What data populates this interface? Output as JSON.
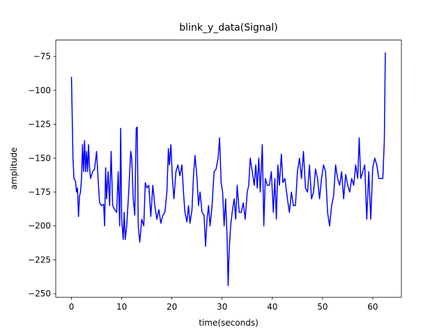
{
  "chart_data": {
    "type": "line",
    "title": "blink_y_data(Signal)",
    "xlabel": "time(seconds)",
    "ylabel": "amplitude",
    "xlim": [
      -3.13,
      65.7
    ],
    "ylim": [
      -252.6,
      -62.9
    ],
    "xticks": [
      0,
      10,
      20,
      30,
      40,
      50,
      60
    ],
    "yticks": [
      {
        "value": -250,
        "label": "−250"
      },
      {
        "value": -225,
        "label": "−225"
      },
      {
        "value": -200,
        "label": "−200"
      },
      {
        "value": -175,
        "label": "−175"
      },
      {
        "value": -150,
        "label": "−150"
      },
      {
        "value": -125,
        "label": "−125"
      },
      {
        "value": -100,
        "label": "−100"
      },
      {
        "value": -75,
        "label": "−75"
      }
    ],
    "grid": false,
    "x": [
      0,
      0.3,
      0.5,
      0.8,
      1.0,
      1.2,
      1.4,
      1.6,
      1.8,
      2.0,
      2.2,
      2.4,
      2.6,
      2.8,
      3.0,
      3.2,
      3.4,
      3.6,
      3.8,
      4.2,
      4.6,
      5.0,
      5.3,
      5.6,
      6.0,
      6.4,
      6.6,
      6.8,
      7.0,
      7.3,
      7.6,
      7.9,
      8.2,
      8.6,
      9.0,
      9.3,
      9.6,
      9.8,
      10.0,
      10.3,
      10.5,
      10.7,
      11.0,
      11.4,
      11.8,
      12.0,
      12.3,
      12.6,
      12.9,
      13.1,
      13.3,
      13.6,
      14.0,
      14.4,
      14.7,
      15.0,
      15.4,
      15.8,
      16.2,
      16.6,
      17.0,
      17.4,
      17.8,
      18.2,
      18.6,
      19.0,
      19.3,
      19.5,
      19.8,
      20.1,
      20.4,
      20.8,
      21.2,
      21.6,
      22.0,
      22.3,
      22.6,
      23.0,
      23.3,
      23.6,
      24.0,
      24.3,
      24.6,
      25.0,
      25.3,
      25.6,
      26.0,
      26.4,
      26.7,
      27.0,
      27.3,
      27.6,
      28.0,
      28.4,
      28.8,
      29.2,
      29.5,
      29.8,
      30.1,
      30.4,
      30.7,
      31.0,
      31.2,
      31.4,
      31.7,
      32.0,
      32.4,
      32.7,
      33.0,
      33.4,
      33.8,
      34.2,
      34.6,
      35.0,
      35.3,
      35.6,
      36.0,
      36.4,
      36.7,
      37.0,
      37.3,
      37.6,
      38.0,
      38.3,
      38.6,
      39.0,
      39.4,
      39.8,
      40.2,
      40.5,
      40.8,
      41.1,
      41.4,
      41.8,
      42.1,
      42.5,
      43.0,
      43.4,
      43.8,
      44.2,
      44.6,
      45.0,
      45.4,
      45.8,
      46.2,
      46.6,
      47.0,
      47.4,
      47.8,
      48.2,
      48.6,
      49.0,
      49.4,
      49.8,
      50.2,
      50.6,
      51.0,
      51.4,
      51.8,
      52.2,
      52.6,
      53.0,
      53.4,
      53.8,
      54.2,
      54.6,
      55.0,
      55.4,
      55.8,
      56.2,
      56.6,
      57.0,
      57.3,
      57.6,
      58.0,
      58.4,
      58.8,
      59.2,
      59.6,
      60.0,
      60.4,
      60.8,
      61.2,
      61.6,
      62.0,
      62.3,
      62.5
    ],
    "series": [
      {
        "color": "#0000ff",
        "values": [
          -90,
          -150,
          -165,
          -167,
          -175,
          -172,
          -193,
          -178,
          -175,
          -165,
          -140,
          -160,
          -137,
          -160,
          -145,
          -160,
          -140,
          -157,
          -165,
          -160,
          -158,
          -145,
          -165,
          -183,
          -185,
          -184,
          -200,
          -157,
          -180,
          -160,
          -185,
          -145,
          -185,
          -188,
          -190,
          -160,
          -200,
          -128,
          -195,
          -210,
          -190,
          -210,
          -200,
          -175,
          -145,
          -150,
          -180,
          -192,
          -128,
          -127,
          -200,
          -212,
          -195,
          -200,
          -168,
          -172,
          -170,
          -193,
          -170,
          -185,
          -195,
          -188,
          -198,
          -192,
          -190,
          -175,
          -143,
          -155,
          -140,
          -165,
          -180,
          -160,
          -155,
          -163,
          -155,
          -175,
          -190,
          -197,
          -185,
          -198,
          -188,
          -163,
          -148,
          -165,
          -185,
          -175,
          -190,
          -192,
          -215,
          -195,
          -185,
          -200,
          -185,
          -160,
          -158,
          -150,
          -135,
          -168,
          -175,
          -200,
          -180,
          -210,
          -244,
          -218,
          -200,
          -190,
          -180,
          -195,
          -170,
          -190,
          -190,
          -183,
          -195,
          -175,
          -170,
          -150,
          -160,
          -170,
          -155,
          -172,
          -150,
          -175,
          -140,
          -200,
          -165,
          -170,
          -170,
          -160,
          -190,
          -165,
          -195,
          -155,
          -170,
          -147,
          -168,
          -165,
          -180,
          -190,
          -175,
          -185,
          -185,
          -160,
          -150,
          -165,
          -145,
          -172,
          -175,
          -155,
          -180,
          -175,
          -158,
          -165,
          -180,
          -165,
          -155,
          -160,
          -190,
          -200,
          -185,
          -178,
          -155,
          -165,
          -170,
          -160,
          -180,
          -162,
          -170,
          -175,
          -165,
          -170,
          -155,
          -165,
          -135,
          -165,
          -160,
          -155,
          -195,
          -160,
          -195,
          -157,
          -150,
          -155,
          -165,
          -165,
          -165,
          -137,
          -72
        ]
      }
    ]
  }
}
